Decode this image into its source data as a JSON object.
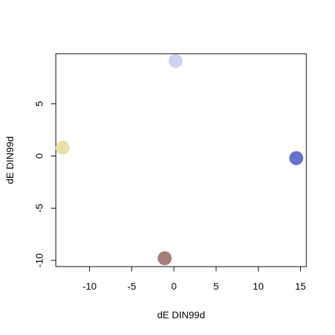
{
  "chart_data": {
    "type": "scatter",
    "title": "",
    "xlabel": "dE DIN99d",
    "ylabel": "dE DIN99d",
    "xlim": [
      -14.0,
      15.7
    ],
    "ylim": [
      -10.6,
      9.8
    ],
    "xticks": [
      -10,
      -5,
      0,
      5,
      10,
      15
    ],
    "yticks": [
      -10,
      -5,
      0,
      5
    ],
    "grid": false,
    "legend": "none",
    "points": [
      {
        "x": 0.2,
        "y": 9.1,
        "color": "#cdd2f0"
      },
      {
        "x": -13.2,
        "y": 0.8,
        "color": "#e9dfac"
      },
      {
        "x": 14.5,
        "y": -0.2,
        "color": "#6472cb"
      },
      {
        "x": -1.1,
        "y": -9.8,
        "color": "#a47e78"
      }
    ]
  }
}
